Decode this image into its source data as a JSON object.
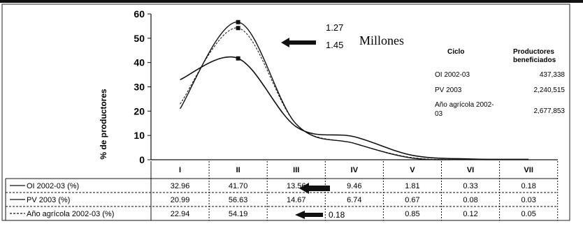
{
  "chart_data": {
    "type": "line",
    "title": "",
    "ylabel": "% de productores",
    "xlabel": "",
    "categories": [
      "I",
      "II",
      "III",
      "IV",
      "V",
      "VI",
      "VII"
    ],
    "yticks": [
      0,
      10,
      20,
      30,
      40,
      50,
      60
    ],
    "ylim": [
      0,
      60
    ],
    "grid": false,
    "legend": "table-below",
    "series": [
      {
        "name": "OI 2002-03 (%)",
        "values": [
          32.96,
          41.7,
          13.56,
          9.46,
          1.81,
          0.33,
          0.18
        ],
        "value_labels": [
          "32.96",
          "41.70",
          "13.56",
          "9.46",
          "1.81",
          "0.33",
          "0.18"
        ]
      },
      {
        "name": "PV 2003 (%)",
        "values": [
          20.99,
          56.63,
          14.67,
          6.74,
          0.67,
          0.08,
          0.03
        ],
        "value_labels": [
          "20.99",
          "56.63",
          "14.67",
          "6.74",
          "0.67",
          "0.08",
          "0.03"
        ]
      },
      {
        "name": "Año agrícola 2002-03 (%)",
        "values": [
          22.94,
          54.19,
          null,
          null,
          0.85,
          0.12,
          0.05
        ],
        "value_labels": [
          "22.94",
          "54.19",
          "",
          "",
          "0.85",
          "0.12",
          "0.05"
        ]
      }
    ],
    "annotations": {
      "million_1": "1.27",
      "million_2": "1.45",
      "millions_word": "Millones",
      "table_note": "0.18"
    },
    "inset_table": {
      "headers": [
        "Ciclo",
        "Productores beneficiados"
      ],
      "rows": [
        [
          "OI 2002-03",
          "437,338"
        ],
        [
          "PV 2003",
          "2,240,515"
        ],
        [
          "Año agrícola 2002-03",
          "2,677,853"
        ]
      ]
    }
  }
}
